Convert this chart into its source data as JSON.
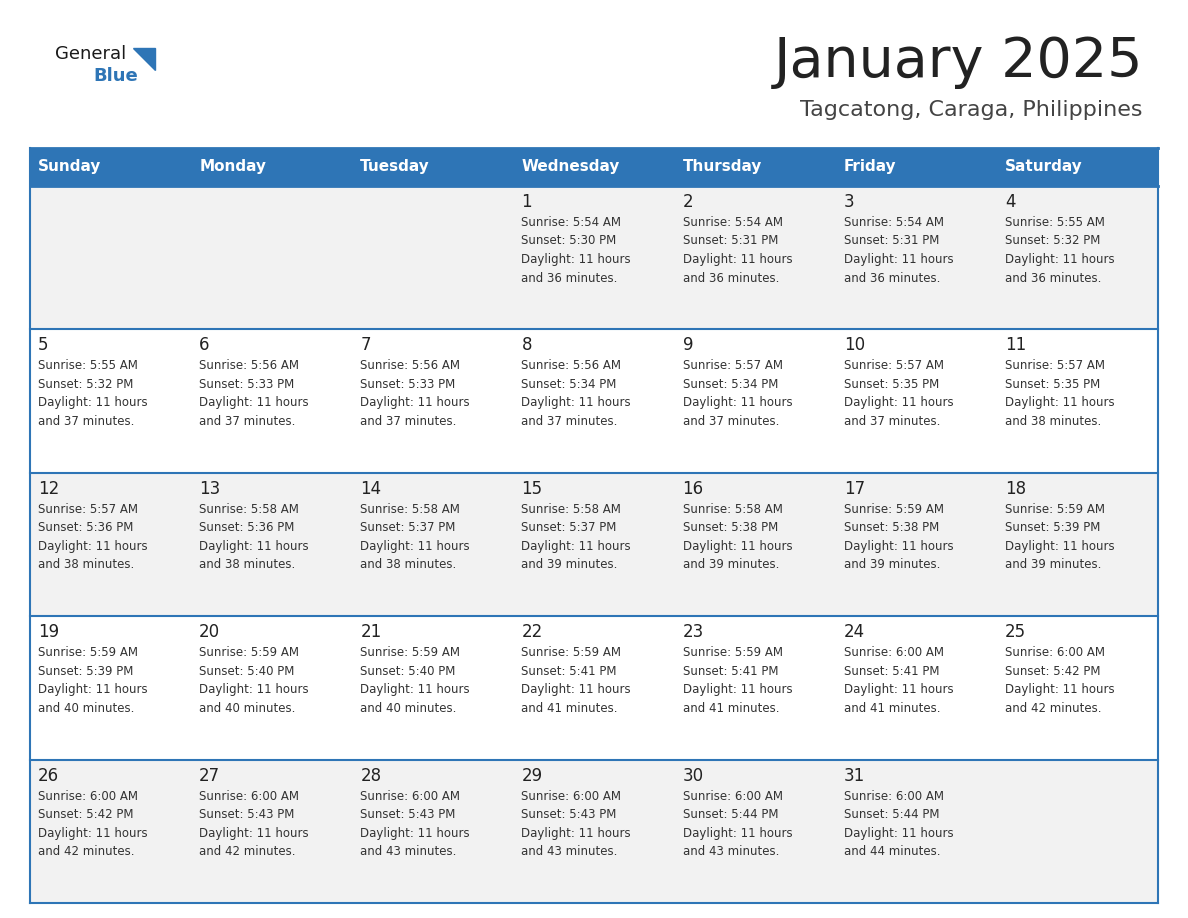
{
  "title": "January 2025",
  "subtitle": "Tagcatong, Caraga, Philippines",
  "days_of_week": [
    "Sunday",
    "Monday",
    "Tuesday",
    "Wednesday",
    "Thursday",
    "Friday",
    "Saturday"
  ],
  "header_bg": "#2E75B6",
  "header_text": "#FFFFFF",
  "row_bg_odd": "#F2F2F2",
  "row_bg_even": "#FFFFFF",
  "day_num_color": "#222222",
  "cell_text_color": "#333333",
  "border_color": "#2E75B6",
  "title_color": "#222222",
  "subtitle_color": "#444444",
  "logo_general_color": "#1A1A1A",
  "logo_blue_color": "#2E75B6",
  "logo_triangle_color": "#2E75B6",
  "calendar_data": [
    [
      null,
      null,
      null,
      {
        "day": 1,
        "sunrise": "5:54 AM",
        "sunset": "5:30 PM",
        "daylight_hours": 11,
        "daylight_minutes": 36
      },
      {
        "day": 2,
        "sunrise": "5:54 AM",
        "sunset": "5:31 PM",
        "daylight_hours": 11,
        "daylight_minutes": 36
      },
      {
        "day": 3,
        "sunrise": "5:54 AM",
        "sunset": "5:31 PM",
        "daylight_hours": 11,
        "daylight_minutes": 36
      },
      {
        "day": 4,
        "sunrise": "5:55 AM",
        "sunset": "5:32 PM",
        "daylight_hours": 11,
        "daylight_minutes": 36
      }
    ],
    [
      {
        "day": 5,
        "sunrise": "5:55 AM",
        "sunset": "5:32 PM",
        "daylight_hours": 11,
        "daylight_minutes": 37
      },
      {
        "day": 6,
        "sunrise": "5:56 AM",
        "sunset": "5:33 PM",
        "daylight_hours": 11,
        "daylight_minutes": 37
      },
      {
        "day": 7,
        "sunrise": "5:56 AM",
        "sunset": "5:33 PM",
        "daylight_hours": 11,
        "daylight_minutes": 37
      },
      {
        "day": 8,
        "sunrise": "5:56 AM",
        "sunset": "5:34 PM",
        "daylight_hours": 11,
        "daylight_minutes": 37
      },
      {
        "day": 9,
        "sunrise": "5:57 AM",
        "sunset": "5:34 PM",
        "daylight_hours": 11,
        "daylight_minutes": 37
      },
      {
        "day": 10,
        "sunrise": "5:57 AM",
        "sunset": "5:35 PM",
        "daylight_hours": 11,
        "daylight_minutes": 37
      },
      {
        "day": 11,
        "sunrise": "5:57 AM",
        "sunset": "5:35 PM",
        "daylight_hours": 11,
        "daylight_minutes": 38
      }
    ],
    [
      {
        "day": 12,
        "sunrise": "5:57 AM",
        "sunset": "5:36 PM",
        "daylight_hours": 11,
        "daylight_minutes": 38
      },
      {
        "day": 13,
        "sunrise": "5:58 AM",
        "sunset": "5:36 PM",
        "daylight_hours": 11,
        "daylight_minutes": 38
      },
      {
        "day": 14,
        "sunrise": "5:58 AM",
        "sunset": "5:37 PM",
        "daylight_hours": 11,
        "daylight_minutes": 38
      },
      {
        "day": 15,
        "sunrise": "5:58 AM",
        "sunset": "5:37 PM",
        "daylight_hours": 11,
        "daylight_minutes": 39
      },
      {
        "day": 16,
        "sunrise": "5:58 AM",
        "sunset": "5:38 PM",
        "daylight_hours": 11,
        "daylight_minutes": 39
      },
      {
        "day": 17,
        "sunrise": "5:59 AM",
        "sunset": "5:38 PM",
        "daylight_hours": 11,
        "daylight_minutes": 39
      },
      {
        "day": 18,
        "sunrise": "5:59 AM",
        "sunset": "5:39 PM",
        "daylight_hours": 11,
        "daylight_minutes": 39
      }
    ],
    [
      {
        "day": 19,
        "sunrise": "5:59 AM",
        "sunset": "5:39 PM",
        "daylight_hours": 11,
        "daylight_minutes": 40
      },
      {
        "day": 20,
        "sunrise": "5:59 AM",
        "sunset": "5:40 PM",
        "daylight_hours": 11,
        "daylight_minutes": 40
      },
      {
        "day": 21,
        "sunrise": "5:59 AM",
        "sunset": "5:40 PM",
        "daylight_hours": 11,
        "daylight_minutes": 40
      },
      {
        "day": 22,
        "sunrise": "5:59 AM",
        "sunset": "5:41 PM",
        "daylight_hours": 11,
        "daylight_minutes": 41
      },
      {
        "day": 23,
        "sunrise": "5:59 AM",
        "sunset": "5:41 PM",
        "daylight_hours": 11,
        "daylight_minutes": 41
      },
      {
        "day": 24,
        "sunrise": "6:00 AM",
        "sunset": "5:41 PM",
        "daylight_hours": 11,
        "daylight_minutes": 41
      },
      {
        "day": 25,
        "sunrise": "6:00 AM",
        "sunset": "5:42 PM",
        "daylight_hours": 11,
        "daylight_minutes": 42
      }
    ],
    [
      {
        "day": 26,
        "sunrise": "6:00 AM",
        "sunset": "5:42 PM",
        "daylight_hours": 11,
        "daylight_minutes": 42
      },
      {
        "day": 27,
        "sunrise": "6:00 AM",
        "sunset": "5:43 PM",
        "daylight_hours": 11,
        "daylight_minutes": 42
      },
      {
        "day": 28,
        "sunrise": "6:00 AM",
        "sunset": "5:43 PM",
        "daylight_hours": 11,
        "daylight_minutes": 43
      },
      {
        "day": 29,
        "sunrise": "6:00 AM",
        "sunset": "5:43 PM",
        "daylight_hours": 11,
        "daylight_minutes": 43
      },
      {
        "day": 30,
        "sunrise": "6:00 AM",
        "sunset": "5:44 PM",
        "daylight_hours": 11,
        "daylight_minutes": 43
      },
      {
        "day": 31,
        "sunrise": "6:00 AM",
        "sunset": "5:44 PM",
        "daylight_hours": 11,
        "daylight_minutes": 44
      },
      null
    ]
  ]
}
